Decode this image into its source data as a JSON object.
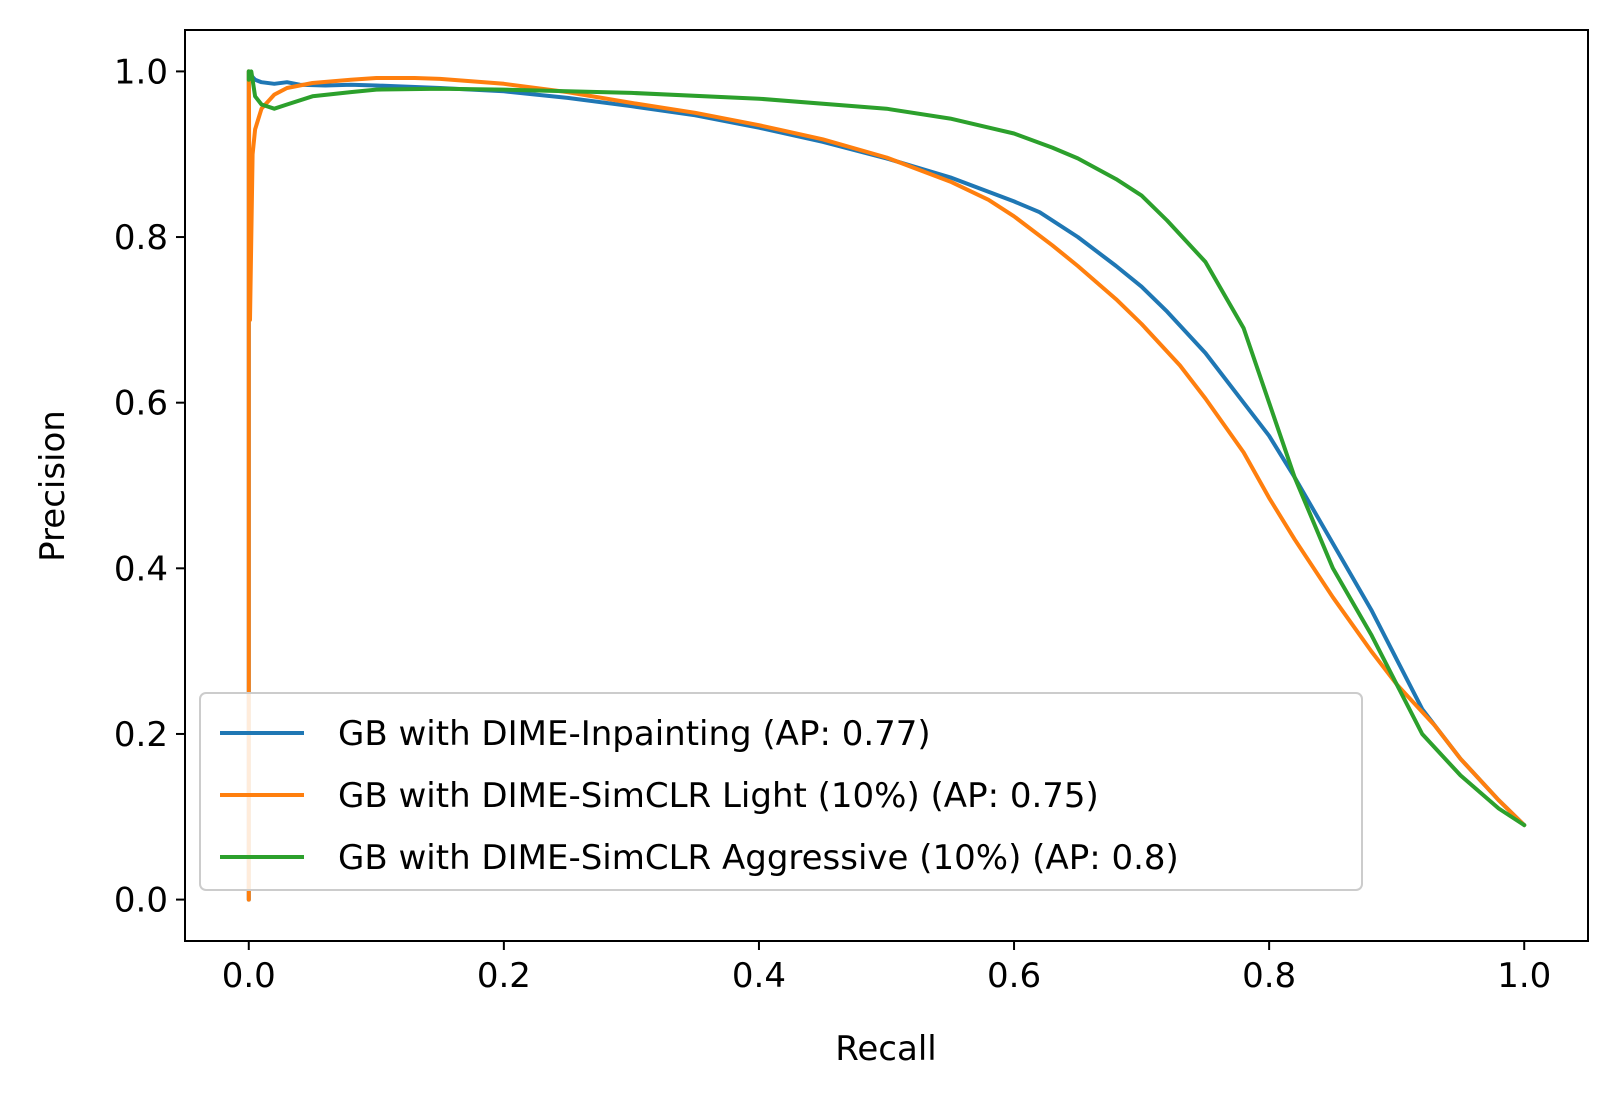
{
  "chart_data": {
    "type": "line",
    "title": "",
    "xlabel": "Recall",
    "ylabel": "Precision",
    "xlim": [
      -0.05,
      1.05
    ],
    "ylim": [
      -0.05,
      1.05
    ],
    "xticks": [
      0.0,
      0.2,
      0.4,
      0.6,
      0.8,
      1.0
    ],
    "yticks": [
      0.0,
      0.2,
      0.4,
      0.6,
      0.8,
      1.0
    ],
    "xtick_labels": [
      "0.0",
      "0.2",
      "0.4",
      "0.6",
      "0.8",
      "1.0"
    ],
    "ytick_labels": [
      "0.0",
      "0.2",
      "0.4",
      "0.6",
      "0.8",
      "1.0"
    ],
    "grid": false,
    "legend_position": "lower-left",
    "series": [
      {
        "name": "GB with DIME-Inpainting (AP: 0.77)",
        "color": "#1f77b4",
        "x": [
          0.0,
          0.0,
          0.002,
          0.005,
          0.01,
          0.02,
          0.03,
          0.04,
          0.06,
          0.08,
          0.1,
          0.15,
          0.2,
          0.25,
          0.3,
          0.35,
          0.4,
          0.45,
          0.5,
          0.55,
          0.6,
          0.62,
          0.65,
          0.68,
          0.7,
          0.72,
          0.75,
          0.78,
          0.8,
          0.82,
          0.85,
          0.88,
          0.9,
          0.92,
          0.95,
          0.98,
          1.0
        ],
        "y": [
          0.0,
          1.0,
          0.995,
          0.99,
          0.987,
          0.985,
          0.987,
          0.984,
          0.983,
          0.984,
          0.983,
          0.98,
          0.976,
          0.968,
          0.958,
          0.947,
          0.932,
          0.915,
          0.895,
          0.872,
          0.843,
          0.83,
          0.8,
          0.765,
          0.74,
          0.71,
          0.66,
          0.6,
          0.56,
          0.51,
          0.43,
          0.35,
          0.29,
          0.23,
          0.17,
          0.12,
          0.09
        ]
      },
      {
        "name": "GB with DIME-SimCLR Light (10%) (AP: 0.75)",
        "color": "#ff7f0e",
        "x": [
          0.0,
          0.0,
          0.001,
          0.003,
          0.005,
          0.01,
          0.02,
          0.03,
          0.05,
          0.08,
          0.1,
          0.13,
          0.15,
          0.2,
          0.25,
          0.3,
          0.35,
          0.4,
          0.45,
          0.5,
          0.55,
          0.58,
          0.6,
          0.63,
          0.65,
          0.68,
          0.7,
          0.73,
          0.75,
          0.78,
          0.8,
          0.82,
          0.85,
          0.88,
          0.9,
          0.93,
          0.95,
          0.98,
          1.0
        ],
        "y": [
          0.0,
          1.0,
          0.7,
          0.9,
          0.93,
          0.955,
          0.972,
          0.98,
          0.986,
          0.99,
          0.992,
          0.992,
          0.991,
          0.985,
          0.975,
          0.962,
          0.95,
          0.935,
          0.918,
          0.896,
          0.867,
          0.845,
          0.825,
          0.79,
          0.765,
          0.725,
          0.695,
          0.645,
          0.605,
          0.54,
          0.485,
          0.435,
          0.365,
          0.3,
          0.26,
          0.21,
          0.17,
          0.12,
          0.09
        ]
      },
      {
        "name": "GB with DIME-SimCLR Aggressive (10%) (AP: 0.8)",
        "color": "#2ca02c",
        "x": [
          0.0,
          0.0,
          0.002,
          0.005,
          0.01,
          0.02,
          0.03,
          0.05,
          0.08,
          0.1,
          0.15,
          0.2,
          0.3,
          0.4,
          0.5,
          0.55,
          0.6,
          0.63,
          0.65,
          0.68,
          0.7,
          0.72,
          0.75,
          0.78,
          0.8,
          0.82,
          0.85,
          0.88,
          0.9,
          0.92,
          0.95,
          0.98,
          1.0
        ],
        "y": [
          1.0,
          0.99,
          1.0,
          0.97,
          0.96,
          0.955,
          0.96,
          0.97,
          0.975,
          0.978,
          0.979,
          0.978,
          0.974,
          0.967,
          0.955,
          0.943,
          0.925,
          0.908,
          0.895,
          0.87,
          0.85,
          0.82,
          0.77,
          0.69,
          0.6,
          0.51,
          0.4,
          0.32,
          0.26,
          0.2,
          0.15,
          0.11,
          0.09
        ]
      }
    ]
  }
}
